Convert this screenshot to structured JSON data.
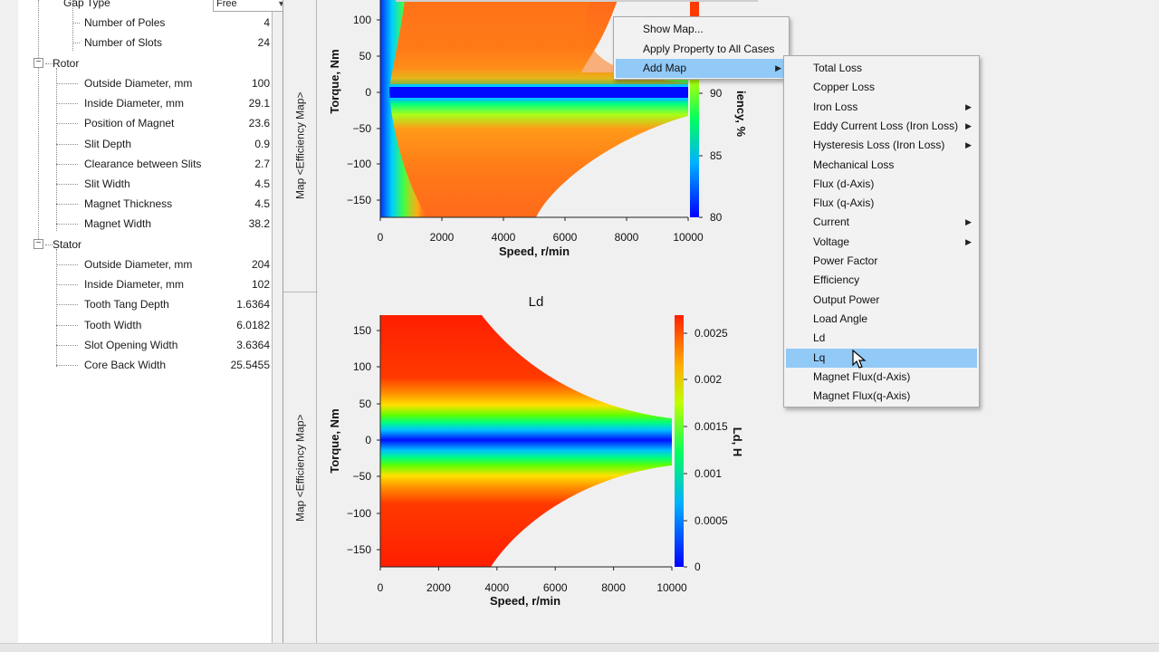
{
  "tree": {
    "gap_type": {
      "label": "Gap Type",
      "value": "Free"
    },
    "top_rows": [
      {
        "label": "Number of Poles",
        "value": "4"
      },
      {
        "label": "Number of Slots",
        "value": "24"
      }
    ],
    "rotor": {
      "label": "Rotor",
      "rows": [
        {
          "label": "Outside Diameter, mm",
          "value": "100"
        },
        {
          "label": "Inside Diameter, mm",
          "value": "29.1"
        },
        {
          "label": "Position of Magnet",
          "value": "23.6"
        },
        {
          "label": "Slit Depth",
          "value": "0.9"
        },
        {
          "label": "Clearance between Slits",
          "value": "2.7"
        },
        {
          "label": "Slit Width",
          "value": "4.5"
        },
        {
          "label": "Magnet Thickness",
          "value": "4.5"
        },
        {
          "label": "Magnet Width",
          "value": "38.2"
        }
      ]
    },
    "stator": {
      "label": "Stator",
      "rows": [
        {
          "label": "Outside Diameter, mm",
          "value": "204"
        },
        {
          "label": "Inside Diameter, mm",
          "value": "102"
        },
        {
          "label": "Tooth Tang Depth",
          "value": "1.6364"
        },
        {
          "label": "Tooth Width",
          "value": "6.0182"
        },
        {
          "label": "Slot Opening Width",
          "value": "3.6364"
        },
        {
          "label": "Core Back Width",
          "value": "25.5455"
        }
      ]
    }
  },
  "tabs": {
    "top": "Map <Efficiency Map>",
    "bottom": "Map <Efficiency Map>"
  },
  "plots": {
    "efficiency": {
      "xlabel": "Speed, r/min",
      "ylabel": "Torque, Nm",
      "colorbar_label": "Efficiency, %",
      "colorbar_label_visible": "iency, %",
      "x_ticks": [
        "0",
        "2000",
        "4000",
        "6000",
        "8000",
        "10000"
      ],
      "y_ticks": [
        "100",
        "50",
        "0",
        "−50",
        "−100",
        "−150"
      ],
      "cbar_ticks": [
        "90",
        "85",
        "80"
      ]
    },
    "ld": {
      "title": "Ld",
      "xlabel": "Speed, r/min",
      "ylabel": "Torque, Nm",
      "colorbar_label": "Ld, H",
      "x_ticks": [
        "0",
        "2000",
        "4000",
        "6000",
        "8000",
        "10000"
      ],
      "y_ticks": [
        "150",
        "100",
        "50",
        "0",
        "−50",
        "−100",
        "−150"
      ],
      "cbar_ticks": [
        "0.0025",
        "0.002",
        "0.0015",
        "0.001",
        "0.0005",
        "0"
      ]
    }
  },
  "context_menu": {
    "items": [
      "Show Map...",
      "Apply Property to All Cases",
      "Add Map"
    ]
  },
  "submenu": {
    "items": [
      "Total Loss",
      "Copper Loss",
      "Iron Loss",
      "Eddy Current Loss (Iron Loss)",
      "Hysteresis Loss (Iron Loss)",
      "Mechanical Loss",
      "Flux (d-Axis)",
      "Flux (q-Axis)",
      "Current",
      "Voltage",
      "Power Factor",
      "Efficiency",
      "Output Power",
      "Load Angle",
      "Ld",
      "Lq",
      "Magnet Flux(d-Axis)",
      "Magnet Flux(q-Axis)"
    ],
    "highlighted": "Lq"
  },
  "colors": {
    "menu_highlight": "#91c9f7",
    "map_red": "#ff2a00",
    "map_blue": "#0000ff"
  }
}
